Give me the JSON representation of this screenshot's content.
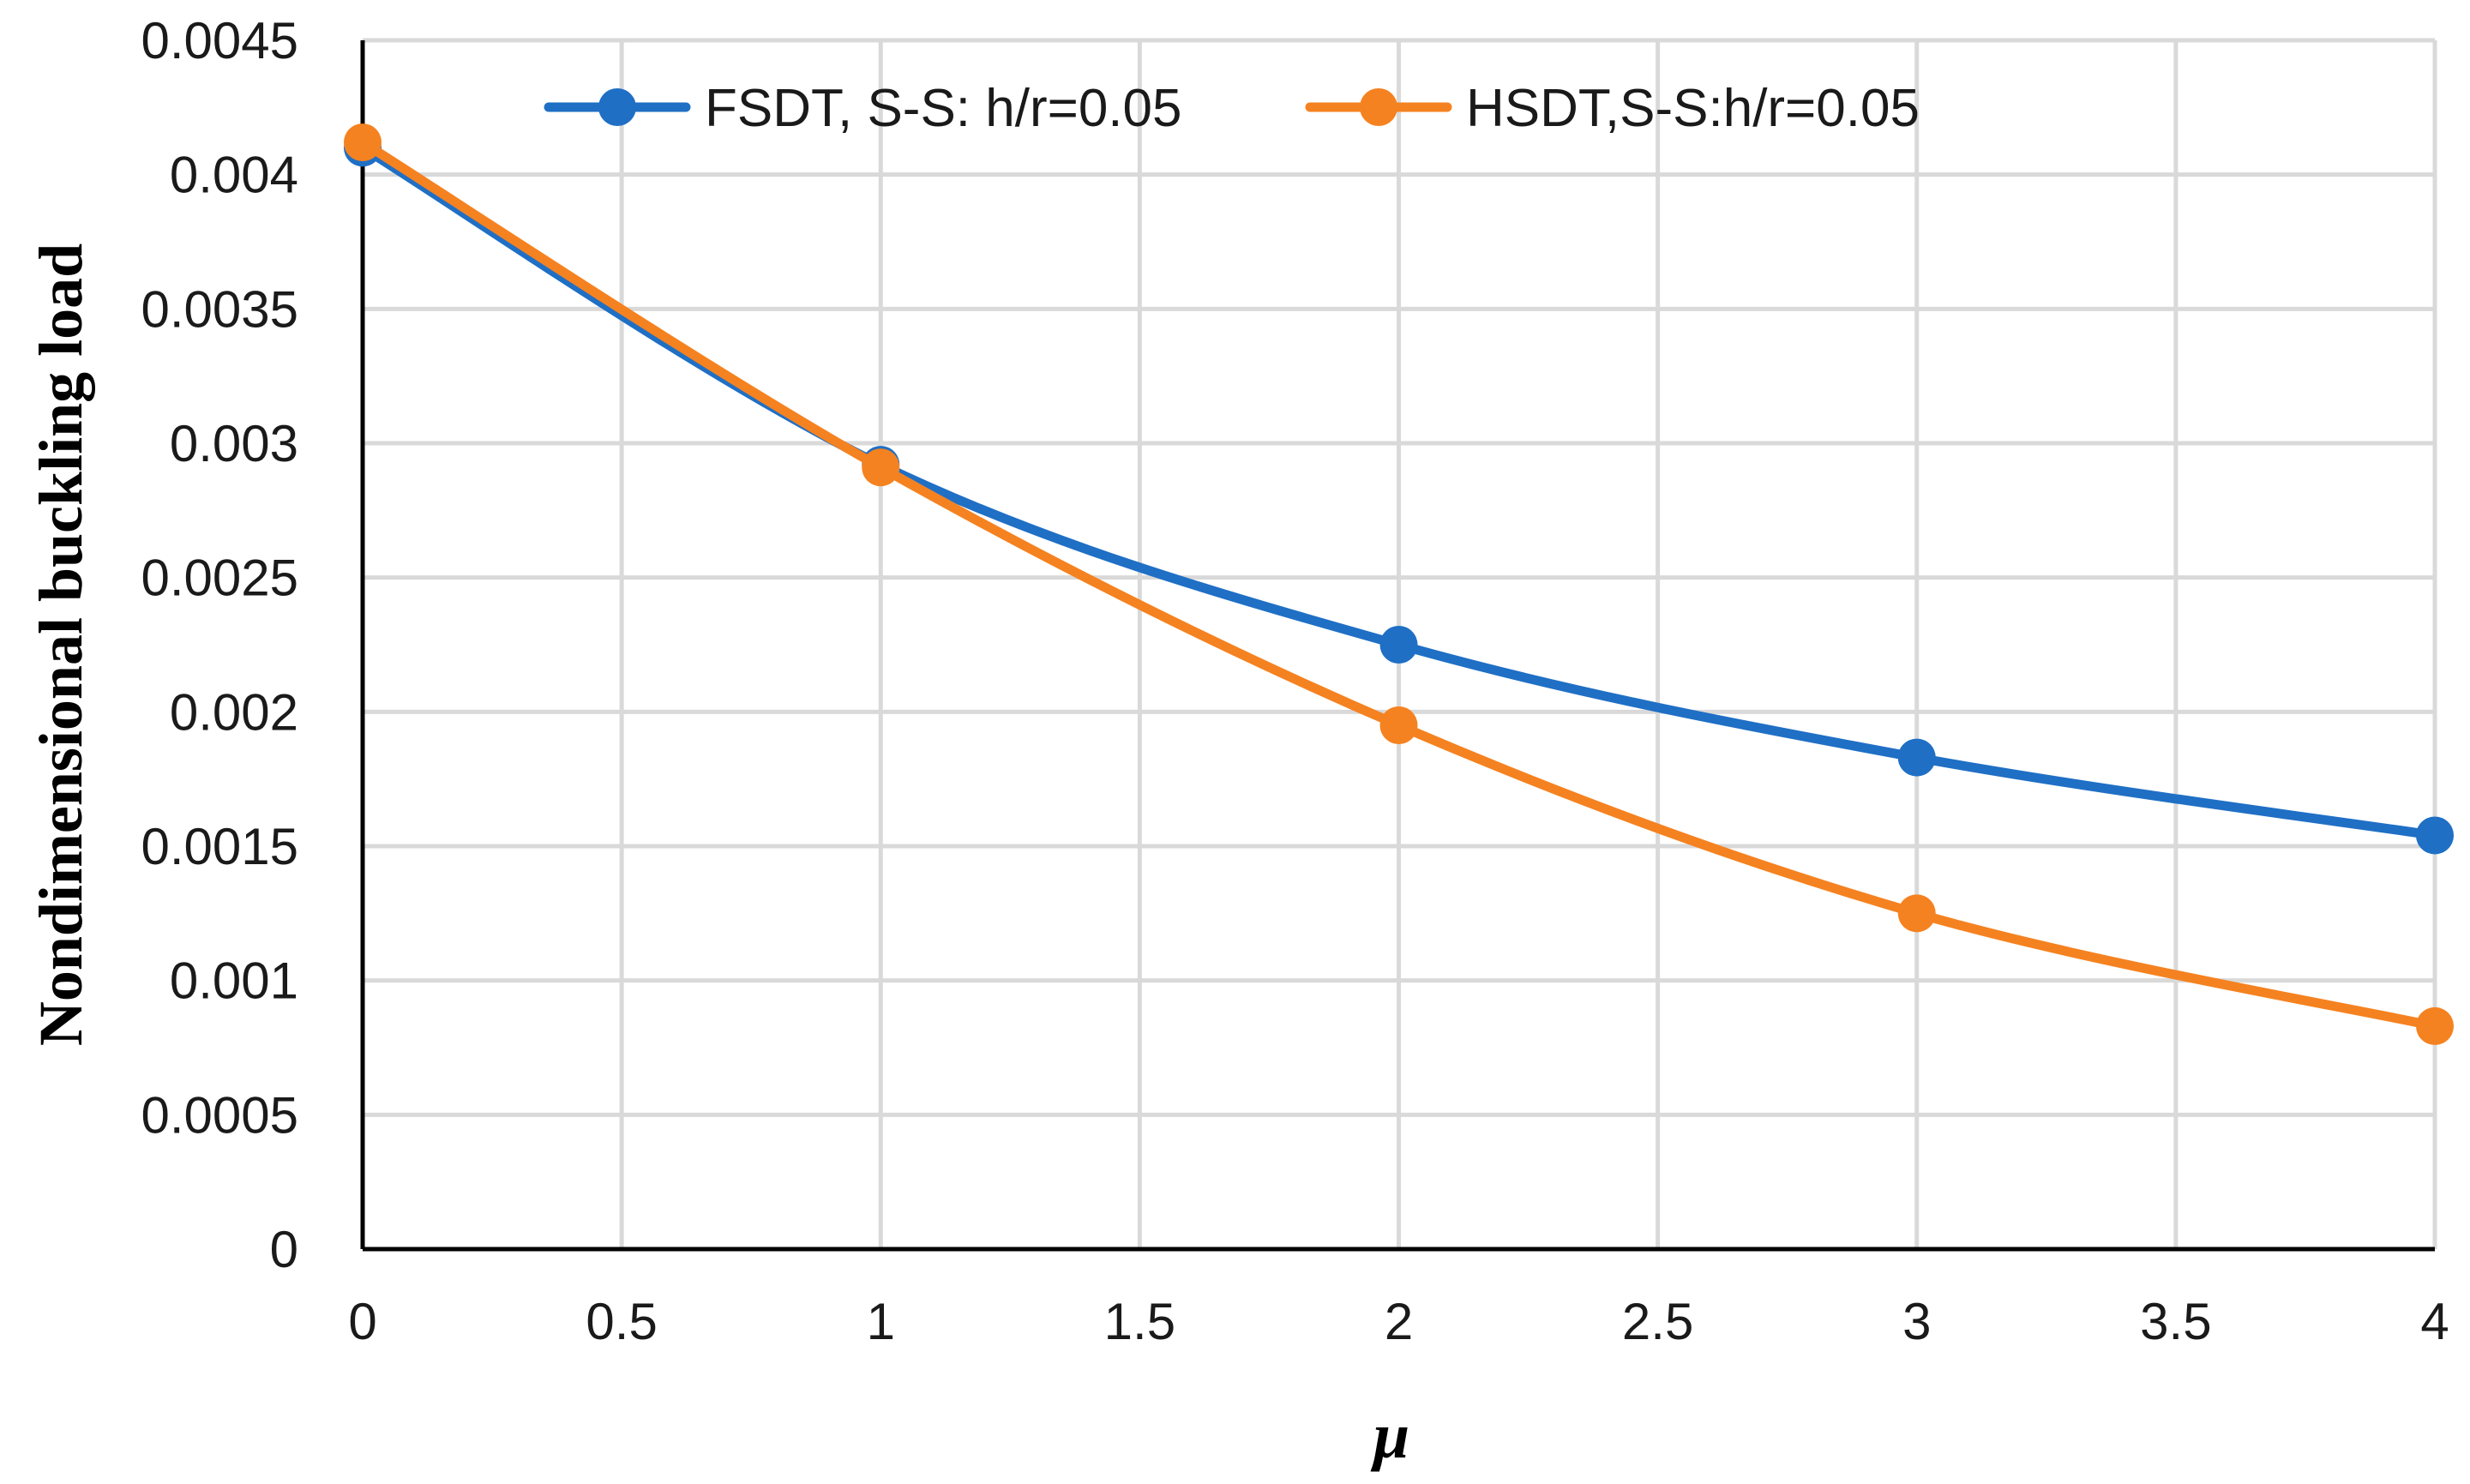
{
  "chart_data": {
    "type": "line",
    "title": "",
    "xlabel": "μ",
    "ylabel": "Nondimensional buckling load",
    "xlim": [
      0,
      4
    ],
    "ylim": [
      0,
      0.0045
    ],
    "x_ticks": [
      "0",
      "0.5",
      "1",
      "1.5",
      "2",
      "2.5",
      "3",
      "3.5",
      "4"
    ],
    "y_ticks": [
      "0",
      "0.0005",
      "0.001",
      "0.0015",
      "0.002",
      "0.0025",
      "0.003",
      "0.0035",
      "0.004",
      "0.0045"
    ],
    "grid": true,
    "legend_position": "top",
    "x": [
      0,
      1,
      2,
      3,
      4
    ],
    "series": [
      {
        "name": "FSDT, S-S: h/r=0.05",
        "color": "#1f6fc5",
        "values": [
          0.0041,
          0.00292,
          0.00225,
          0.00183,
          0.00154
        ]
      },
      {
        "name": "HSDT,S-S:h/r=0.05",
        "color": "#f58220",
        "values": [
          0.00412,
          0.00291,
          0.00195,
          0.00125,
          0.00083
        ]
      }
    ]
  }
}
